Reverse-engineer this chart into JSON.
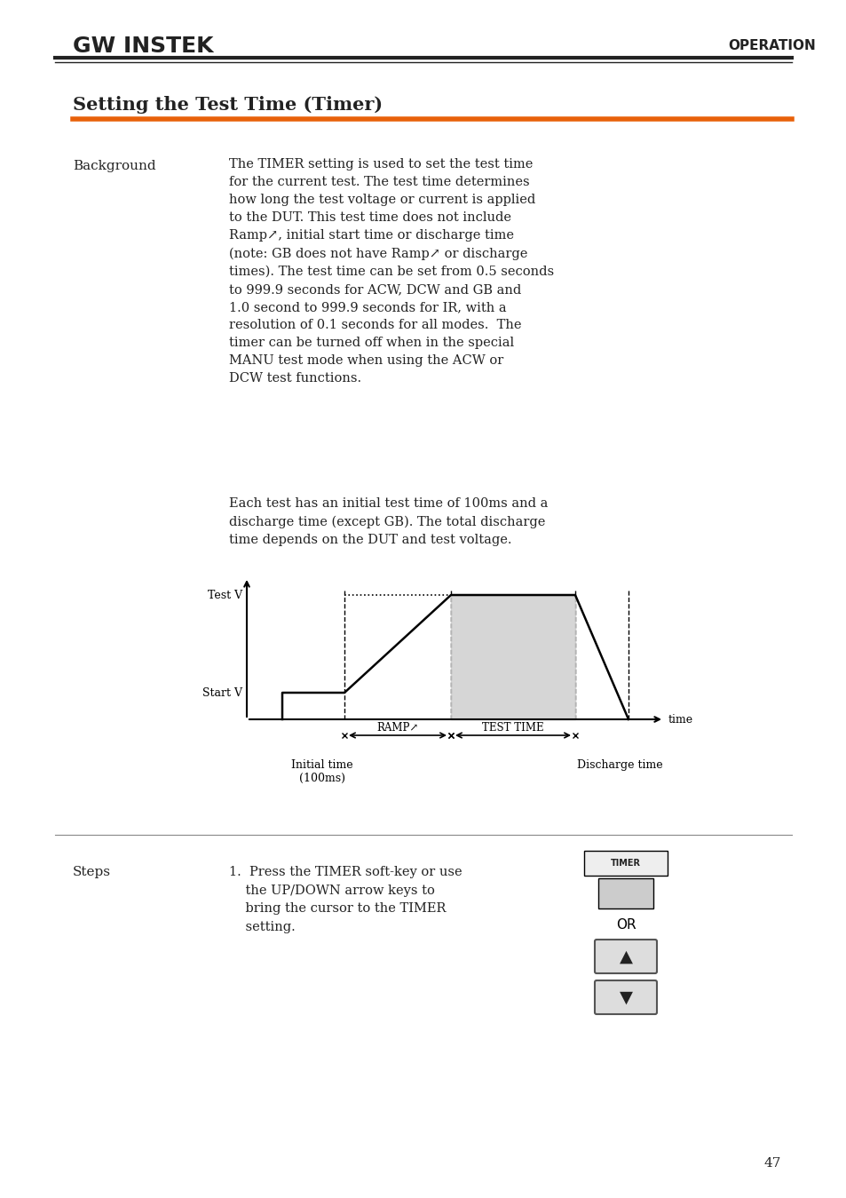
{
  "page_title": "Setting the Test Time (Timer)",
  "header_right": "OPERATION",
  "orange_line_color": "#E8610A",
  "section_background": "#ffffff",
  "logo_text": "GW INSTEK",
  "background_label": "Background",
  "steps_label": "Steps",
  "background_text": "The TIMER setting is used to set the test time\nfor the current test. The test time determines\nhow long the test voltage or current is applied\nto the DUT. This test time does not include\nRamp↗, initial start time or discharge time\n(note: GB does not have Ramp↗ or discharge\ntimes). The test time can be set from 0.5 seconds\nto 999.9 seconds for ACW, DCW and GB and\n1.0 second to 999.9 seconds for IR, with a\nresolution of 0.1 seconds for all modes.  The\ntimer can be turned off when in the special\nMANU test mode when using the ACW or\nDCW test functions.",
  "background_text2": "Each test has an initial test time of 100ms and a\ndischarge time (except GB). The total discharge\ntime depends on the DUT and test voltage.",
  "steps_text": "1.  Press the TIMER soft-key or use\n    the UP/DOWN arrow keys to\n    bring the cursor to the TIMER\n    setting.",
  "page_number": "47",
  "diagram": {
    "test_v_label": "Test V",
    "start_v_label": "Start V",
    "time_label": "time",
    "ramp_label": "RAMP↗",
    "test_time_label": "TEST TIME",
    "initial_time_label": "Initial time\n(100ms)",
    "discharge_time_label": "Discharge time",
    "fill_color": "#cccccc",
    "line_color": "#000000"
  },
  "button_colors": {
    "timer_btn_bg": "#dddddd",
    "timer_btn_text": "#222222",
    "up_btn_bg": "#cccccc",
    "down_btn_bg": "#cccccc"
  }
}
